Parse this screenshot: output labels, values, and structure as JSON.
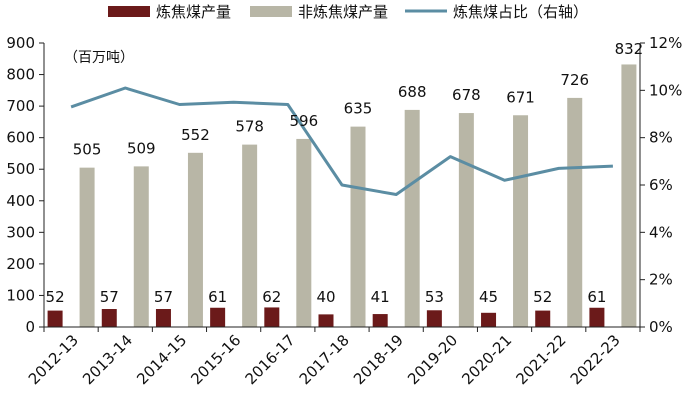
{
  "chart_data": {
    "type": "bar",
    "categories": [
      "2012-13",
      "2013-14",
      "2014-15",
      "2015-16",
      "2016-17",
      "2017-18",
      "2018-19",
      "2019-20",
      "2020-21",
      "2021-22",
      "2022-23"
    ],
    "series": [
      {
        "name": "炼焦煤产量",
        "type": "bar",
        "axis": "left",
        "color": "#6b1a1a",
        "values": [
          52,
          57,
          57,
          61,
          62,
          40,
          41,
          53,
          45,
          52,
          61
        ]
      },
      {
        "name": "非炼焦煤产量",
        "type": "bar",
        "axis": "left",
        "color": "#b8b6a6",
        "values": [
          505,
          509,
          552,
          578,
          596,
          635,
          688,
          678,
          671,
          726,
          832
        ]
      },
      {
        "name": "炼焦煤占比（右轴）",
        "type": "line",
        "axis": "right",
        "color": "#5b8da3",
        "values": [
          9.3,
          10.1,
          9.4,
          9.5,
          9.4,
          6.0,
          5.6,
          7.2,
          6.2,
          6.7,
          6.8
        ]
      }
    ],
    "unit_label": "（百万吨）",
    "y_left": {
      "min": 0,
      "max": 900,
      "step": 100
    },
    "y_right": {
      "min": 0,
      "max": 12,
      "step": 2,
      "suffix": "%"
    },
    "legend_position": "top",
    "grid": false
  }
}
